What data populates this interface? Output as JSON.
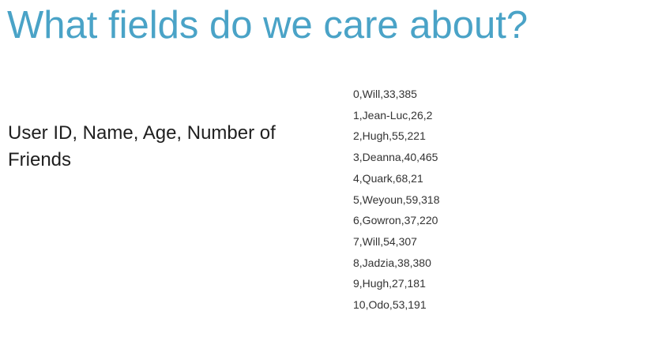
{
  "slide": {
    "title": "What fields do we care about?",
    "description": "User ID, Name, Age, Number of Friends",
    "records": [
      "0,Will,33,385",
      "1,Jean-Luc,26,2",
      "2,Hugh,55,221",
      "3,Deanna,40,465",
      "4,Quark,68,21",
      "5,Weyoun,59,318",
      "6,Gowron,37,220",
      "7,Will,54,307",
      "8,Jadzia,38,380",
      "9,Hugh,27,181",
      "10,Odo,53,191"
    ]
  },
  "colors": {
    "title": "#4aa3c7",
    "text": "#1f1f1f"
  }
}
